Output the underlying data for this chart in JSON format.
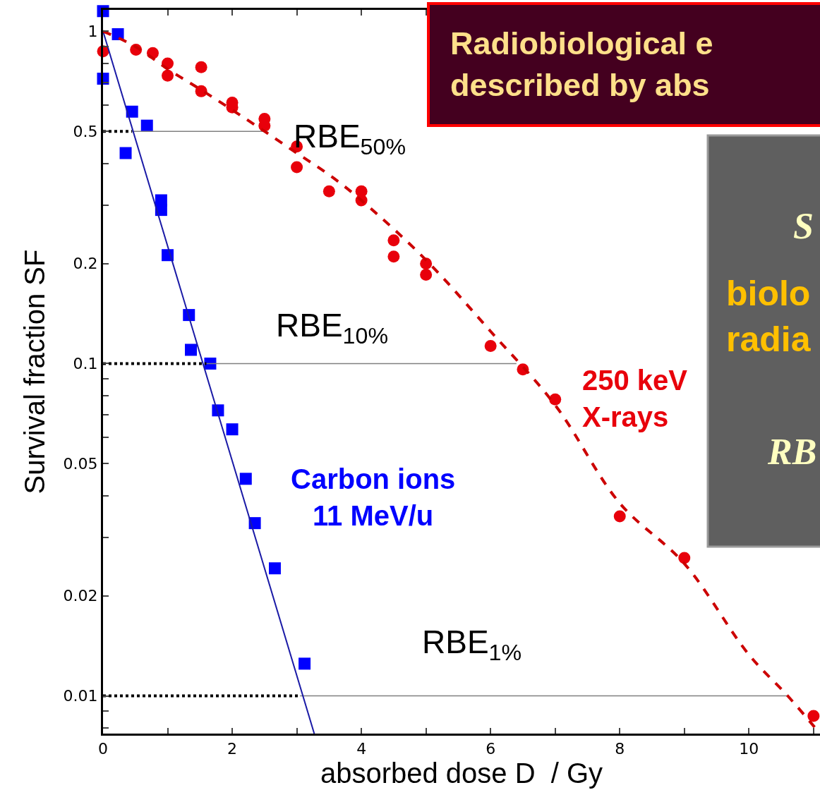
{
  "chart_data": {
    "type": "scatter",
    "title": "Radiobiological e\ndescribed by abs",
    "xlabel": "absorbed dose D  / Gy",
    "ylabel": "Survival fraction SF",
    "log": "y",
    "legend": false,
    "xlim": [
      0,
      11.1
    ],
    "ylim": [
      0.0077,
      1.16
    ],
    "xticks": [
      0,
      {
        "value": 1,
        "label": null
      },
      2,
      {
        "value": 3,
        "label": null
      },
      4,
      {
        "value": 5,
        "label": null
      },
      6,
      {
        "value": 7,
        "label": null
      },
      8,
      {
        "value": 9,
        "label": null
      },
      10,
      {
        "value": 11,
        "label": null
      }
    ],
    "yticks": [
      {
        "value": 0.008,
        "label": null
      },
      {
        "value": 0.009,
        "label": null
      },
      0.01,
      0.02,
      {
        "value": 0.03,
        "label": null
      },
      {
        "value": 0.04,
        "label": null
      },
      0.05,
      {
        "value": 0.06,
        "label": null
      },
      {
        "value": 0.07,
        "label": null
      },
      {
        "value": 0.08,
        "label": null
      },
      {
        "value": 0.09,
        "label": null
      },
      0.1,
      0.2,
      {
        "value": 0.3,
        "label": null
      },
      {
        "value": 0.4,
        "label": null
      },
      0.5,
      {
        "value": 0.6,
        "label": null
      },
      {
        "value": 0.7,
        "label": null
      },
      {
        "value": 0.8,
        "label": null
      },
      {
        "value": 0.9,
        "label": null
      },
      1
    ],
    "series": [
      {
        "type": "line",
        "color": "#808080",
        "line_style": "solid",
        "marker": "none",
        "x": [
          0.45,
          2.55
        ],
        "values": [
          0.5,
          0.5
        ]
      },
      {
        "type": "line",
        "color": "#808080",
        "line_style": "solid",
        "marker": "none",
        "x": [
          1.6,
          6.4
        ],
        "values": [
          0.1,
          0.1
        ]
      },
      {
        "type": "line",
        "color": "#808080",
        "line_style": "solid",
        "marker": "none",
        "x": [
          3.05,
          10.6
        ],
        "values": [
          0.01,
          0.01
        ]
      },
      {
        "type": "line",
        "color": "#000000",
        "line_style": "dotted",
        "marker": "none",
        "x": [
          0,
          0.45
        ],
        "values": [
          0.5,
          0.5
        ]
      },
      {
        "type": "line",
        "color": "#000000",
        "line_style": "dotted",
        "marker": "none",
        "x": [
          0,
          1.6
        ],
        "values": [
          0.1,
          0.1
        ]
      },
      {
        "type": "line",
        "color": "#000000",
        "line_style": "dotted",
        "marker": "none",
        "x": [
          0,
          3.05
        ],
        "values": [
          0.01,
          0.01
        ]
      },
      {
        "type": "line",
        "color": "#1a1aa6",
        "line_style": "solid",
        "marker": "none",
        "x": [
          0,
          3.27
        ],
        "values": [
          1,
          0.0077
        ]
      },
      {
        "type": "line",
        "color": "#cc0000",
        "line_style": "dashed",
        "marker": "none",
        "x": [
          0,
          0.5,
          1,
          1.5,
          2,
          2.5,
          3,
          3.5,
          4,
          5,
          6,
          7,
          8,
          9,
          10,
          10.6,
          11.1
        ],
        "values": [
          1.0,
          0.9,
          0.77,
          0.67,
          0.58,
          0.5,
          0.43,
          0.37,
          0.31,
          0.205,
          0.125,
          0.075,
          0.038,
          0.025,
          0.0133,
          0.01,
          0.0077
        ]
      },
      {
        "name": "Carbon ions\n11 MeV/u",
        "color": "#0000ff",
        "marker": "square",
        "x": [
          0,
          0.23,
          0,
          0.45,
          0.68,
          0.35,
          0.9,
          0.9,
          1.0,
          1.33,
          1.36,
          1.66,
          1.78,
          2.0,
          2.21,
          2.35,
          2.66,
          3.12
        ],
        "values": [
          1.15,
          0.98,
          0.72,
          0.573,
          0.52,
          0.43,
          0.31,
          0.29,
          0.212,
          0.14,
          0.11,
          0.1,
          0.0723,
          0.0634,
          0.045,
          0.0331,
          0.0242,
          0.0125
        ]
      },
      {
        "name": "250 keV\nX-rays",
        "color": "#e8000b",
        "marker": "circle",
        "x": [
          0,
          0.51,
          0.77,
          1.0,
          1.0,
          1.52,
          1.52,
          2.0,
          2.0,
          2.5,
          2.5,
          3.0,
          3.0,
          3.5,
          4.0,
          4.0,
          4.5,
          4.5,
          5.0,
          5.0,
          6.0,
          6.5,
          7.0,
          8.0,
          9.0,
          11.0
        ],
        "values": [
          0.87,
          0.88,
          0.86,
          0.8,
          0.735,
          0.78,
          0.66,
          0.61,
          0.59,
          0.545,
          0.52,
          0.45,
          0.39,
          0.33,
          0.33,
          0.31,
          0.235,
          0.21,
          0.2,
          0.185,
          0.113,
          0.096,
          0.078,
          0.0347,
          0.026,
          0.0087
        ]
      }
    ],
    "annotations": [
      "RBE$_{50%}$",
      "RBE$_{10%}$",
      "RBE$_{1%}$",
      "S",
      "biolo\nradia",
      "RB"
    ]
  }
}
